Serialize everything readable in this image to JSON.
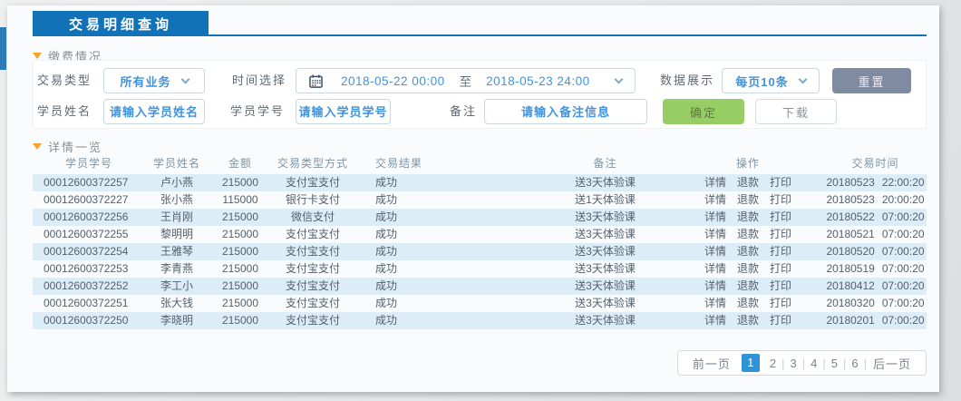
{
  "page": {
    "title": "交易明细查询"
  },
  "sections": {
    "payment": "缴费情况",
    "details": "详情一览"
  },
  "filters": {
    "trade_type_label": "交易类型",
    "trade_type_value": "所有业务",
    "time_label": "时间选择",
    "time_start": "2018-05-22 00:00",
    "time_to": "至",
    "time_end": "2018-05-23 24:00",
    "display_label": "数据展示",
    "display_value": "每页10条",
    "reset_label": "重置",
    "student_name_label": "学员姓名",
    "student_name_placeholder": "请输入学员姓名",
    "student_id_label": "学员学号",
    "student_id_placeholder": "请输入学员学号",
    "remark_label": "备注",
    "remark_placeholder": "请输入备注信息",
    "confirm_label": "确定",
    "download_label": "下载"
  },
  "table": {
    "headers": [
      "学员学号",
      "学员姓名",
      "金额",
      "交易类型方式",
      "交易结果",
      "备注",
      "操作",
      "交易时间"
    ],
    "actions": [
      {
        "key": "detail",
        "label": "详情"
      },
      {
        "key": "refund",
        "label": "退款"
      },
      {
        "key": "print",
        "label": "打印"
      }
    ],
    "rows": [
      {
        "student_id": "00012600372257",
        "student_name": "卢小燕",
        "amount": "215000",
        "method": "支付宝支付",
        "result": "成功",
        "remark": "送3天体验课",
        "trade_date": "20180523",
        "trade_clock": "22:00:20"
      },
      {
        "student_id": "00012600372227",
        "student_name": "张小燕",
        "amount": "115000",
        "method": "银行卡支付",
        "result": "成功",
        "remark": "送1天体验课",
        "trade_date": "20180523",
        "trade_clock": "20:00:20"
      },
      {
        "student_id": "00012600372256",
        "student_name": "王肖刚",
        "amount": "215000",
        "method": "微信支付",
        "result": "成功",
        "remark": "送3天体验课",
        "trade_date": "20180522",
        "trade_clock": "07:00:20"
      },
      {
        "student_id": "00012600372255",
        "student_name": "黎明明",
        "amount": "215000",
        "method": "支付宝支付",
        "result": "成功",
        "remark": "送3天体验课",
        "trade_date": "20180521",
        "trade_clock": "07:00:20"
      },
      {
        "student_id": "00012600372254",
        "student_name": "王雅琴",
        "amount": "215000",
        "method": "支付宝支付",
        "result": "成功",
        "remark": "送3天体验课",
        "trade_date": "20180520",
        "trade_clock": "07:00:20"
      },
      {
        "student_id": "00012600372253",
        "student_name": "李青燕",
        "amount": "215000",
        "method": "支付宝支付",
        "result": "成功",
        "remark": "送3天体验课",
        "trade_date": "20180519",
        "trade_clock": "07:00:20"
      },
      {
        "student_id": "00012600372252",
        "student_name": "李工小",
        "amount": "215000",
        "method": "支付宝支付",
        "result": "成功",
        "remark": "送3天体验课",
        "trade_date": "20180412",
        "trade_clock": "07:00:20"
      },
      {
        "student_id": "00012600372251",
        "student_name": "张大钱",
        "amount": "215000",
        "method": "支付宝支付",
        "result": "成功",
        "remark": "送3天体验课",
        "trade_date": "20180320",
        "trade_clock": "07:00:20"
      },
      {
        "student_id": "00012600372250",
        "student_name": "李晓明",
        "amount": "215000",
        "method": "支付宝支付",
        "result": "成功",
        "remark": "送3天体验课",
        "trade_date": "20180201",
        "trade_clock": "07:00:20"
      }
    ]
  },
  "pagination": {
    "prev": "前一页",
    "pages": [
      "1",
      "2",
      "3",
      "4",
      "5",
      "6"
    ],
    "current": "1",
    "separator": "|",
    "next": "后一页"
  },
  "colors": {
    "header_blue": "#1272b8",
    "accent_blue": "#4193de",
    "row_stripe_blue": "#ddedf8",
    "confirm_green": "#97cd64",
    "reset_gray": "#7e8ba1",
    "triangle_orange": "#f9a22b",
    "current_page_blue": "#3093d5"
  }
}
